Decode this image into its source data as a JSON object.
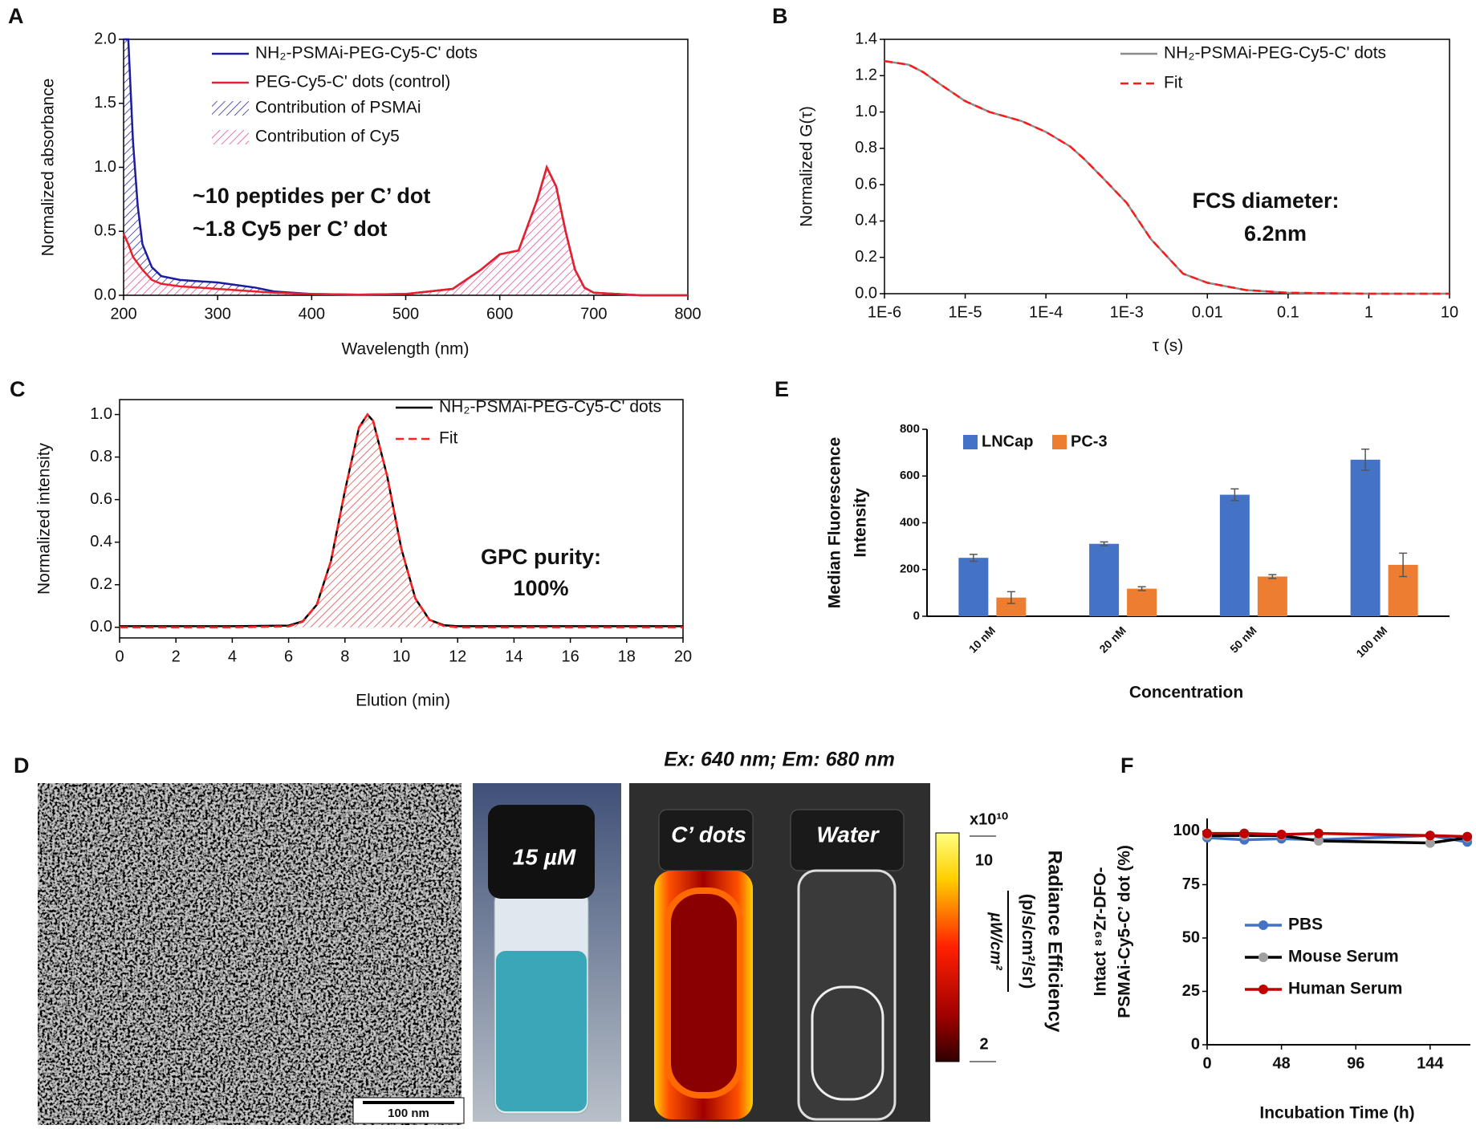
{
  "chart_data": [
    {
      "type": "line",
      "panel": "A",
      "xlabel": "Wavelength (nm)",
      "ylabel": [
        "Normalized absorbance"
      ],
      "xlim": [
        200,
        800
      ],
      "ylim": [
        0,
        2
      ],
      "xticks": [
        200,
        300,
        400,
        500,
        600,
        700,
        800
      ],
      "yticks": [
        {
          "value": 0,
          "label": "0.0"
        },
        0.5,
        {
          "value": 1,
          "label": "1.0"
        },
        1.5,
        {
          "value": 2,
          "label": "2.0"
        }
      ],
      "x": [
        200,
        205,
        210,
        215,
        220,
        230,
        240,
        260,
        280,
        300,
        320,
        340,
        360,
        400,
        450,
        500,
        550,
        580,
        600,
        620,
        640,
        650,
        660,
        670,
        680,
        690,
        700,
        750,
        800
      ],
      "series": [
        {
          "name": "NH₂-PSMAi-PEG-Cy5-C' dots",
          "color": "#1c1c9c",
          "values": [
            2.0,
            2.0,
            1.2,
            0.7,
            0.4,
            0.22,
            0.15,
            0.12,
            0.11,
            0.1,
            0.08,
            0.06,
            0.03,
            0.01,
            0.005,
            0.01,
            0.05,
            0.2,
            0.32,
            0.35,
            0.75,
            1.0,
            0.85,
            0.5,
            0.2,
            0.06,
            0.02,
            0,
            0
          ]
        },
        {
          "name": "PEG-Cy5-C' dots (control)",
          "color": "#e8202a",
          "values": [
            0.48,
            0.4,
            0.3,
            0.25,
            0.2,
            0.12,
            0.09,
            0.07,
            0.06,
            0.05,
            0.04,
            0.03,
            0.02,
            0.01,
            0.005,
            0.01,
            0.05,
            0.2,
            0.32,
            0.35,
            0.75,
            1.0,
            0.85,
            0.5,
            0.2,
            0.06,
            0.02,
            0,
            0
          ]
        }
      ],
      "areas": [
        {
          "name": "Contribution of PSMAi",
          "color": "#2a2ab0"
        },
        {
          "name": "Contribution of Cy5",
          "color": "#e0509a"
        }
      ],
      "annotations": [
        "~10 peptides per C’ dot",
        "~1.8 Cy5 per C’ dot"
      ]
    },
    {
      "type": "line",
      "panel": "B",
      "xlabel": "τ (s)",
      "ylabel": [
        "Normalized G(τ)"
      ],
      "xscale": "log",
      "xlim": [
        1e-06,
        10
      ],
      "ylim": [
        0,
        1.4
      ],
      "xticks": [
        {
          "value": 1e-06,
          "label": "1E-6"
        },
        {
          "value": 1e-05,
          "label": "1E-5"
        },
        {
          "value": 0.0001,
          "label": "1E-4"
        },
        {
          "value": 0.001,
          "label": "1E-3"
        },
        0.01,
        0.1,
        1,
        10
      ],
      "yticks": [
        {
          "value": 0,
          "label": "0.0"
        },
        0.2,
        0.4,
        0.6,
        0.8,
        {
          "value": 1,
          "label": "1.0"
        },
        1.2,
        1.4
      ],
      "x": [
        1e-06,
        2e-06,
        3e-06,
        5e-06,
        1e-05,
        2e-05,
        5e-05,
        0.0001,
        0.0002,
        0.0003,
        0.0005,
        0.001,
        0.002,
        0.005,
        0.01,
        0.03,
        0.1,
        1,
        10
      ],
      "series": [
        {
          "name": "NH₂-PSMAi-PEG-Cy5-C' dots",
          "color": "#8c8c8c",
          "values": [
            1.28,
            1.26,
            1.22,
            1.15,
            1.06,
            1.0,
            0.95,
            0.89,
            0.81,
            0.74,
            0.64,
            0.5,
            0.3,
            0.11,
            0.06,
            0.02,
            0.005,
            0,
            0
          ]
        },
        {
          "name": "Fit",
          "color": "#ff1a1a",
          "dash": true,
          "values": [
            1.28,
            1.26,
            1.22,
            1.15,
            1.06,
            1.0,
            0.95,
            0.89,
            0.81,
            0.74,
            0.64,
            0.5,
            0.3,
            0.11,
            0.06,
            0.02,
            0.005,
            0,
            0
          ]
        }
      ],
      "annotations": [
        "FCS diameter:",
        "6.2nm"
      ]
    },
    {
      "type": "line",
      "panel": "C",
      "xlabel": "Elution (min)",
      "ylabel": [
        "Normalized intensity"
      ],
      "xlim": [
        0,
        20
      ],
      "ylim": [
        -0.05,
        1.07
      ],
      "xticks": [
        0,
        2,
        4,
        6,
        8,
        10,
        12,
        14,
        16,
        18,
        20
      ],
      "yticks": [
        {
          "value": 0,
          "label": "0.0"
        },
        0.2,
        0.4,
        0.6,
        0.8,
        {
          "value": 1,
          "label": "1.0"
        }
      ],
      "x": [
        0,
        2,
        4,
        6,
        6.5,
        7,
        7.5,
        8,
        8.5,
        8.8,
        9,
        9.5,
        10,
        10.5,
        11,
        11.5,
        12,
        14,
        16,
        18,
        20
      ],
      "series": [
        {
          "name": "NH₂-PSMAi-PEG-Cy5-C' dots",
          "color": "#000000",
          "values": [
            0.005,
            0.005,
            0.005,
            0.008,
            0.028,
            0.106,
            0.31,
            0.642,
            0.94,
            1.0,
            0.97,
            0.71,
            0.37,
            0.135,
            0.035,
            0.01,
            0.005,
            0.005,
            0.005,
            0.005,
            0.005
          ]
        },
        {
          "name": "Fit",
          "color": "#ff2020",
          "dash": true,
          "fill_color": "#e05050",
          "values": [
            0,
            0,
            0,
            0.004,
            0.026,
            0.106,
            0.31,
            0.642,
            0.94,
            1.0,
            0.97,
            0.71,
            0.37,
            0.135,
            0.035,
            0.0065,
            0,
            0,
            0,
            0,
            0
          ]
        }
      ],
      "annotations": [
        "GPC purity:",
        "100%"
      ]
    },
    {
      "type": "bar",
      "panel": "E",
      "xlabel": "Concentration",
      "ylabel": [
        "Median Fluorescence",
        "Intensity"
      ],
      "categories": [
        "10 nM",
        "20 nM",
        "50 nM",
        "100 nM"
      ],
      "ylim": [
        0,
        800
      ],
      "yticks": [
        0,
        200,
        400,
        600,
        800
      ],
      "series": [
        {
          "name": "LNCap",
          "color": "#4472c4",
          "values": [
            250,
            310,
            520,
            670
          ],
          "errors": [
            15,
            8,
            25,
            45
          ]
        },
        {
          "name": "PC-3",
          "color": "#ed7d31",
          "values": [
            80,
            118,
            170,
            220
          ],
          "errors": [
            25,
            8,
            8,
            50
          ]
        }
      ]
    },
    {
      "type": "line",
      "panel": "F",
      "xlabel": "Incubation Time (h)",
      "ylabel": [
        "Intact ⁸⁹Zr-DFO-",
        "PSMAi-Cy5-C’ dot (%)"
      ],
      "xlim": [
        0,
        170
      ],
      "ylim": [
        0,
        106
      ],
      "xticks": [
        0,
        48,
        96,
        144
      ],
      "yticks": [
        0,
        25,
        50,
        75,
        100
      ],
      "x": [
        0,
        24,
        48,
        72,
        144,
        168
      ],
      "series": [
        {
          "name": "PBS",
          "color": "#4472c4",
          "marker": true,
          "values": [
            97,
            96,
            96.5,
            96,
            98,
            95
          ]
        },
        {
          "name": "Mouse Serum",
          "color": "#000000",
          "marker_color": "#a0a0a0",
          "marker": true,
          "values": [
            98,
            98,
            98,
            95.5,
            94.5,
            97
          ]
        },
        {
          "name": "Human Serum",
          "color": "#c00000",
          "marker": true,
          "values": [
            99,
            99,
            98.5,
            99,
            98,
            97.5
          ]
        }
      ]
    }
  ],
  "panel_d": {
    "label": "D",
    "header": "Ex: 640 nm; Em: 680 nm",
    "scale_bar": "100 nm",
    "vial_label": "15 µM",
    "sample_labels": [
      "C’ dots",
      "Water"
    ],
    "colorbar": {
      "multiplier": "x10¹⁰",
      "max": 10,
      "min": 2,
      "title": "Radiance Efficiency",
      "units": "(p/s/cm²/sr)",
      "denominator": "µW/cm²"
    }
  }
}
